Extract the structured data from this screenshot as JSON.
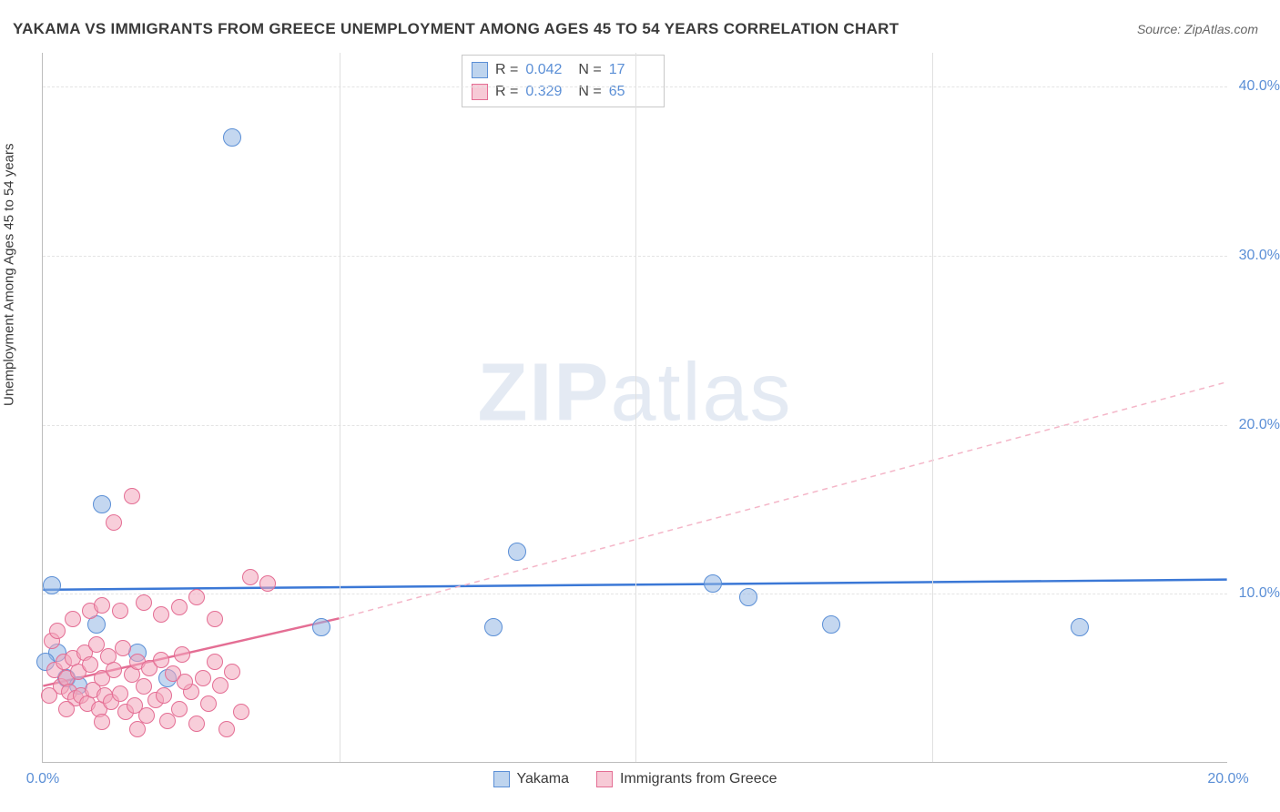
{
  "title": "YAKAMA VS IMMIGRANTS FROM GREECE UNEMPLOYMENT AMONG AGES 45 TO 54 YEARS CORRELATION CHART",
  "source_label": "Source: ZipAtlas.com",
  "ylabel": "Unemployment Among Ages 45 to 54 years",
  "watermark": {
    "zip": "ZIP",
    "atlas": "atlas"
  },
  "chart": {
    "type": "scatter",
    "xlim": [
      0,
      20
    ],
    "ylim": [
      0,
      42
    ],
    "x_ticks": [
      {
        "v": 0,
        "label": "0.0%"
      },
      {
        "v": 20,
        "label": "20.0%"
      }
    ],
    "x_gridlines": [
      5,
      10,
      15
    ],
    "y_ticks": [
      {
        "v": 10,
        "label": "10.0%"
      },
      {
        "v": 20,
        "label": "20.0%"
      },
      {
        "v": 30,
        "label": "30.0%"
      },
      {
        "v": 40,
        "label": "40.0%"
      }
    ],
    "background_color": "#ffffff",
    "grid_color": "#e4e4e4",
    "axis_color": "#bdbdbd",
    "tick_color": "#5b8fd6",
    "marker_radius_blue": 10,
    "marker_radius_pink": 9,
    "series": [
      {
        "name": "Yakama",
        "color_fill": "rgba(147,183,227,0.55)",
        "color_stroke": "#5b8fd6",
        "R": "0.042",
        "N": "17",
        "trend": {
          "x1": 0,
          "y1": 10.2,
          "x2": 20,
          "y2": 10.8,
          "color": "#3b78d6",
          "width": 2.5,
          "dash": "none"
        },
        "points": [
          [
            3.2,
            37.0
          ],
          [
            1.0,
            15.3
          ],
          [
            0.15,
            10.5
          ],
          [
            0.9,
            8.2
          ],
          [
            1.6,
            6.5
          ],
          [
            2.1,
            5.0
          ],
          [
            0.25,
            6.5
          ],
          [
            0.4,
            5.0
          ],
          [
            4.7,
            8.0
          ],
          [
            7.6,
            8.0
          ],
          [
            8.0,
            12.5
          ],
          [
            11.3,
            10.6
          ],
          [
            11.9,
            9.8
          ],
          [
            13.3,
            8.2
          ],
          [
            17.5,
            8.0
          ],
          [
            0.6,
            4.6
          ],
          [
            0.05,
            6.0
          ]
        ]
      },
      {
        "name": "Immigrants from Greece",
        "color_fill": "rgba(242,166,187,0.55)",
        "color_stroke": "#e46e94",
        "R": "0.329",
        "N": "65",
        "trend_solid": {
          "x1": 0,
          "y1": 4.5,
          "x2": 5,
          "y2": 8.5,
          "color": "#e46e94",
          "width": 2.5
        },
        "trend_dash": {
          "x1": 5,
          "y1": 8.5,
          "x2": 20,
          "y2": 22.5,
          "color": "#f4b6c8",
          "width": 1.5
        },
        "points": [
          [
            1.5,
            15.8
          ],
          [
            1.2,
            14.2
          ],
          [
            3.5,
            11.0
          ],
          [
            3.8,
            10.6
          ],
          [
            0.2,
            5.5
          ],
          [
            0.3,
            4.5
          ],
          [
            0.35,
            6.0
          ],
          [
            0.4,
            5.0
          ],
          [
            0.45,
            4.2
          ],
          [
            0.5,
            6.2
          ],
          [
            0.55,
            3.8
          ],
          [
            0.6,
            5.4
          ],
          [
            0.65,
            4.0
          ],
          [
            0.7,
            6.5
          ],
          [
            0.75,
            3.5
          ],
          [
            0.8,
            5.8
          ],
          [
            0.85,
            4.3
          ],
          [
            0.9,
            7.0
          ],
          [
            0.95,
            3.2
          ],
          [
            1.0,
            5.0
          ],
          [
            1.05,
            4.0
          ],
          [
            1.1,
            6.3
          ],
          [
            1.15,
            3.6
          ],
          [
            1.2,
            5.5
          ],
          [
            1.3,
            4.1
          ],
          [
            1.35,
            6.8
          ],
          [
            1.4,
            3.0
          ],
          [
            1.5,
            5.2
          ],
          [
            1.55,
            3.4
          ],
          [
            1.6,
            6.0
          ],
          [
            1.7,
            4.5
          ],
          [
            1.75,
            2.8
          ],
          [
            1.8,
            5.6
          ],
          [
            1.9,
            3.7
          ],
          [
            2.0,
            6.1
          ],
          [
            2.05,
            4.0
          ],
          [
            2.1,
            2.5
          ],
          [
            2.2,
            5.3
          ],
          [
            2.3,
            3.2
          ],
          [
            2.35,
            6.4
          ],
          [
            2.5,
            4.2
          ],
          [
            2.6,
            2.3
          ],
          [
            2.7,
            5.0
          ],
          [
            2.8,
            3.5
          ],
          [
            2.9,
            6.0
          ],
          [
            3.0,
            4.6
          ],
          [
            3.1,
            2.0
          ],
          [
            3.2,
            5.4
          ],
          [
            3.35,
            3.0
          ],
          [
            0.15,
            7.2
          ],
          [
            0.25,
            7.8
          ],
          [
            0.5,
            8.5
          ],
          [
            0.8,
            9.0
          ],
          [
            1.0,
            9.3
          ],
          [
            1.3,
            9.0
          ],
          [
            1.7,
            9.5
          ],
          [
            2.0,
            8.8
          ],
          [
            2.3,
            9.2
          ],
          [
            2.6,
            9.8
          ],
          [
            2.9,
            8.5
          ],
          [
            1.0,
            2.4
          ],
          [
            1.6,
            2.0
          ],
          [
            2.4,
            4.8
          ],
          [
            0.1,
            4.0
          ],
          [
            0.4,
            3.2
          ]
        ]
      }
    ]
  },
  "legend_bottom": [
    {
      "swatch": "blue",
      "label": "Yakama"
    },
    {
      "swatch": "pink",
      "label": "Immigrants from Greece"
    }
  ],
  "legend_stats_labels": {
    "R": "R =",
    "N": "N ="
  }
}
